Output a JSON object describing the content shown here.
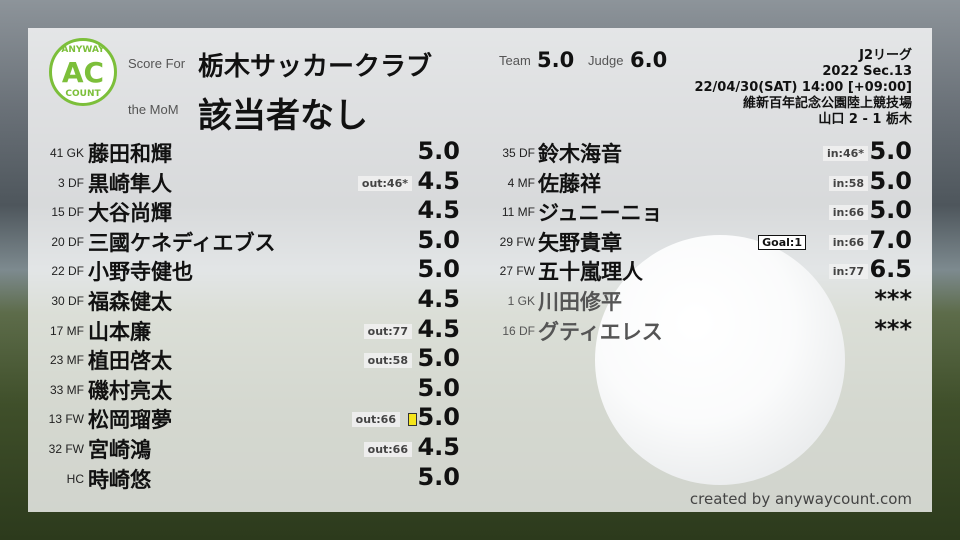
{
  "header": {
    "score_for_label": "Score For",
    "team_name": "栃木サッカークラブ",
    "mom_label": "the MoM",
    "mom_name": "該当者なし",
    "team_label": "Team",
    "team_score": "5.0",
    "judge_label": "Judge",
    "judge_score": "6.0"
  },
  "logo": {
    "top": "ANYWAY",
    "center": "AC",
    "bottom": "COUNT",
    "color": "#7cbf3a"
  },
  "match": {
    "league": "J2リーグ",
    "section": "2022 Sec.13",
    "datetime": "22/04/30(SAT) 14:00 [+09:00]",
    "venue": "維新百年記念公園陸上競技場",
    "result": "山口 2 - 1 栃木"
  },
  "left_players": [
    {
      "pos": "41 GK",
      "name": "藤田和輝",
      "score": "5.0"
    },
    {
      "pos": "3 DF",
      "name": "黒崎隼人",
      "score": "4.5",
      "sub": "out:46*"
    },
    {
      "pos": "15 DF",
      "name": "大谷尚輝",
      "score": "4.5"
    },
    {
      "pos": "20 DF",
      "name": "三國ケネディエブス",
      "score": "5.0"
    },
    {
      "pos": "22 DF",
      "name": "小野寺健也",
      "score": "5.0"
    },
    {
      "pos": "30 DF",
      "name": "福森健太",
      "score": "4.5"
    },
    {
      "pos": "17 MF",
      "name": "山本廉",
      "score": "4.5",
      "sub": "out:77"
    },
    {
      "pos": "23 MF",
      "name": "植田啓太",
      "score": "5.0",
      "sub": "out:58"
    },
    {
      "pos": "33 MF",
      "name": "磯村亮太",
      "score": "5.0"
    },
    {
      "pos": "13 FW",
      "name": "松岡瑠夢",
      "score": "5.0",
      "sub": "out:66",
      "yellow_card": true
    },
    {
      "pos": "32 FW",
      "name": "宮崎鴻",
      "score": "4.5",
      "sub": "out:66"
    },
    {
      "pos": "HC",
      "name": "時崎悠",
      "score": "5.0"
    }
  ],
  "right_players": [
    {
      "pos": "35 DF",
      "name": "鈴木海音",
      "score": "5.0",
      "sub": "in:46*"
    },
    {
      "pos": "4 MF",
      "name": "佐藤祥",
      "score": "5.0",
      "sub": "in:58"
    },
    {
      "pos": "11 MF",
      "name": "ジュニーニョ",
      "score": "5.0",
      "sub": "in:66"
    },
    {
      "pos": "29 FW",
      "name": "矢野貴章",
      "score": "7.0",
      "sub": "in:66",
      "goal": "Goal:1"
    },
    {
      "pos": "27 FW",
      "name": "五十嵐理人",
      "score": "6.5",
      "sub": "in:77"
    },
    {
      "pos": "1 GK",
      "name": "川田修平",
      "score": "***",
      "bench": true
    },
    {
      "pos": "16 DF",
      "name": "グティエレス",
      "score": "***",
      "bench": true
    }
  ],
  "footer": {
    "credit": "created by anywaycount.com"
  }
}
